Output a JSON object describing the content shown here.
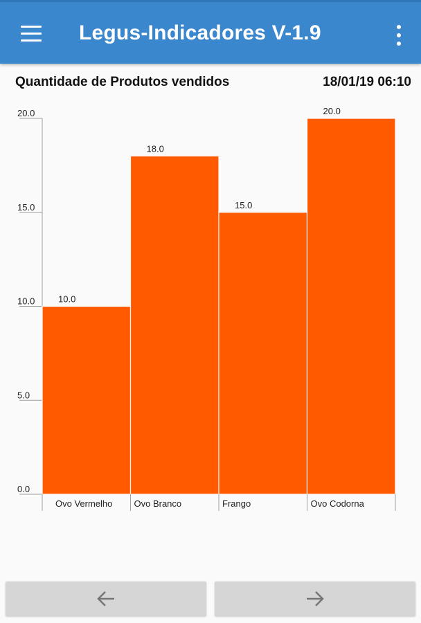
{
  "appbar": {
    "title": "Legus-Indicadores V-1.9",
    "menu_icon": "hamburger-menu-icon",
    "overflow_icon": "more-vert-icon",
    "color": "#3b87cd"
  },
  "header": {
    "title": "Quantidade de Produtos vendidos",
    "datetime": "18/01/19 06:10"
  },
  "chart_data": {
    "type": "bar",
    "categories": [
      "Ovo Vermelho",
      "Ovo Branco",
      "Frango",
      "Ovo Codorna"
    ],
    "values": [
      10.0,
      18.0,
      15.0,
      20.0
    ],
    "value_labels": [
      "10.0",
      "18.0",
      "15.0",
      "20.0"
    ],
    "title": "",
    "xlabel": "",
    "ylabel": "",
    "ylim": [
      0,
      20
    ],
    "yticks": [
      0,
      5,
      10,
      15,
      20
    ],
    "ytick_labels": [
      "0.0",
      "5.0",
      "10.0",
      "15.0",
      "20.0"
    ],
    "grid": false,
    "bar_color": "#ff5a00"
  },
  "navigation": {
    "prev_icon": "arrow-left-icon",
    "next_icon": "arrow-right-icon"
  }
}
